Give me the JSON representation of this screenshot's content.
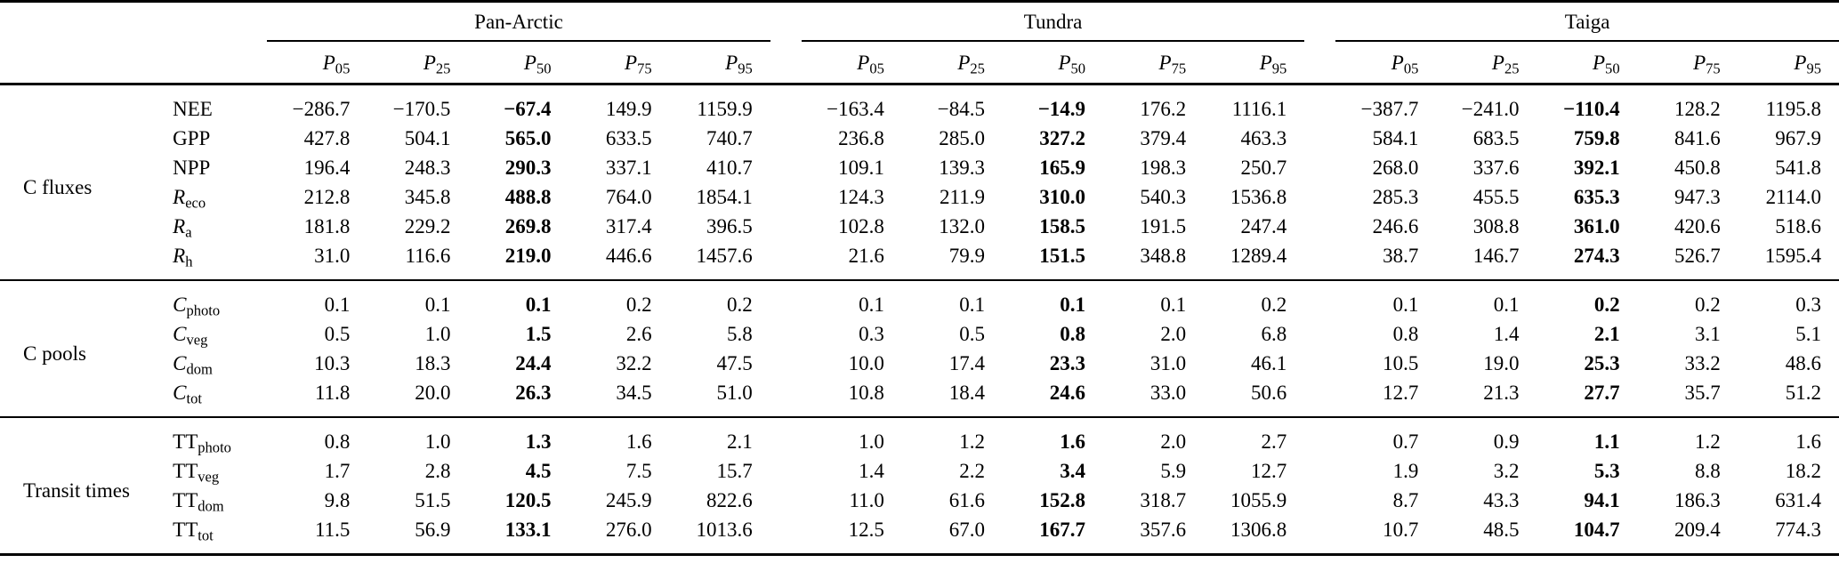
{
  "table": {
    "groups": [
      {
        "label": "Pan-Arctic"
      },
      {
        "label": "Tundra"
      },
      {
        "label": "Taiga"
      }
    ],
    "percentile_headers": [
      {
        "symbol": "P",
        "sub": "05"
      },
      {
        "symbol": "P",
        "sub": "25"
      },
      {
        "symbol": "P",
        "sub": "50"
      },
      {
        "symbol": "P",
        "sub": "75"
      },
      {
        "symbol": "P",
        "sub": "95"
      }
    ],
    "median_column_index": 2,
    "sections": [
      {
        "label": "C fluxes",
        "rows": [
          {
            "variable": {
              "main": "NEE",
              "sub": "",
              "italic": false
            },
            "values": [
              [
                "−286.7",
                "−170.5",
                "−67.4",
                "149.9",
                "1159.9"
              ],
              [
                "−163.4",
                "−84.5",
                "−14.9",
                "176.2",
                "1116.1"
              ],
              [
                "−387.7",
                "−241.0",
                "−110.4",
                "128.2",
                "1195.8"
              ]
            ]
          },
          {
            "variable": {
              "main": "GPP",
              "sub": "",
              "italic": false
            },
            "values": [
              [
                "427.8",
                "504.1",
                "565.0",
                "633.5",
                "740.7"
              ],
              [
                "236.8",
                "285.0",
                "327.2",
                "379.4",
                "463.3"
              ],
              [
                "584.1",
                "683.5",
                "759.8",
                "841.6",
                "967.9"
              ]
            ]
          },
          {
            "variable": {
              "main": "NPP",
              "sub": "",
              "italic": false
            },
            "values": [
              [
                "196.4",
                "248.3",
                "290.3",
                "337.1",
                "410.7"
              ],
              [
                "109.1",
                "139.3",
                "165.9",
                "198.3",
                "250.7"
              ],
              [
                "268.0",
                "337.6",
                "392.1",
                "450.8",
                "541.8"
              ]
            ]
          },
          {
            "variable": {
              "main": "R",
              "sub": "eco",
              "italic": true
            },
            "values": [
              [
                "212.8",
                "345.8",
                "488.8",
                "764.0",
                "1854.1"
              ],
              [
                "124.3",
                "211.9",
                "310.0",
                "540.3",
                "1536.8"
              ],
              [
                "285.3",
                "455.5",
                "635.3",
                "947.3",
                "2114.0"
              ]
            ]
          },
          {
            "variable": {
              "main": "R",
              "sub": "a",
              "italic": true
            },
            "values": [
              [
                "181.8",
                "229.2",
                "269.8",
                "317.4",
                "396.5"
              ],
              [
                "102.8",
                "132.0",
                "158.5",
                "191.5",
                "247.4"
              ],
              [
                "246.6",
                "308.8",
                "361.0",
                "420.6",
                "518.6"
              ]
            ]
          },
          {
            "variable": {
              "main": "R",
              "sub": "h",
              "italic": true
            },
            "values": [
              [
                "31.0",
                "116.6",
                "219.0",
                "446.6",
                "1457.6"
              ],
              [
                "21.6",
                "79.9",
                "151.5",
                "348.8",
                "1289.4"
              ],
              [
                "38.7",
                "146.7",
                "274.3",
                "526.7",
                "1595.4"
              ]
            ]
          }
        ]
      },
      {
        "label": "C pools",
        "rows": [
          {
            "variable": {
              "main": "C",
              "sub": "photo",
              "italic": true
            },
            "values": [
              [
                "0.1",
                "0.1",
                "0.1",
                "0.2",
                "0.2"
              ],
              [
                "0.1",
                "0.1",
                "0.1",
                "0.1",
                "0.2"
              ],
              [
                "0.1",
                "0.1",
                "0.2",
                "0.2",
                "0.3"
              ]
            ]
          },
          {
            "variable": {
              "main": "C",
              "sub": "veg",
              "italic": true
            },
            "values": [
              [
                "0.5",
                "1.0",
                "1.5",
                "2.6",
                "5.8"
              ],
              [
                "0.3",
                "0.5",
                "0.8",
                "2.0",
                "6.8"
              ],
              [
                "0.8",
                "1.4",
                "2.1",
                "3.1",
                "5.1"
              ]
            ]
          },
          {
            "variable": {
              "main": "C",
              "sub": "dom",
              "italic": true
            },
            "values": [
              [
                "10.3",
                "18.3",
                "24.4",
                "32.2",
                "47.5"
              ],
              [
                "10.0",
                "17.4",
                "23.3",
                "31.0",
                "46.1"
              ],
              [
                "10.5",
                "19.0",
                "25.3",
                "33.2",
                "48.6"
              ]
            ]
          },
          {
            "variable": {
              "main": "C",
              "sub": "tot",
              "italic": true
            },
            "values": [
              [
                "11.8",
                "20.0",
                "26.3",
                "34.5",
                "51.0"
              ],
              [
                "10.8",
                "18.4",
                "24.6",
                "33.0",
                "50.6"
              ],
              [
                "12.7",
                "21.3",
                "27.7",
                "35.7",
                "51.2"
              ]
            ]
          }
        ]
      },
      {
        "label": "Transit times",
        "rows": [
          {
            "variable": {
              "main": "TT",
              "sub": "photo",
              "italic": false
            },
            "values": [
              [
                "0.8",
                "1.0",
                "1.3",
                "1.6",
                "2.1"
              ],
              [
                "1.0",
                "1.2",
                "1.6",
                "2.0",
                "2.7"
              ],
              [
                "0.7",
                "0.9",
                "1.1",
                "1.2",
                "1.6"
              ]
            ]
          },
          {
            "variable": {
              "main": "TT",
              "sub": "veg",
              "italic": false
            },
            "values": [
              [
                "1.7",
                "2.8",
                "4.5",
                "7.5",
                "15.7"
              ],
              [
                "1.4",
                "2.2",
                "3.4",
                "5.9",
                "12.7"
              ],
              [
                "1.9",
                "3.2",
                "5.3",
                "8.8",
                "18.2"
              ]
            ]
          },
          {
            "variable": {
              "main": "TT",
              "sub": "dom",
              "italic": false
            },
            "values": [
              [
                "9.8",
                "51.5",
                "120.5",
                "245.9",
                "822.6"
              ],
              [
                "11.0",
                "61.6",
                "152.8",
                "318.7",
                "1055.9"
              ],
              [
                "8.7",
                "43.3",
                "94.1",
                "186.3",
                "631.4"
              ]
            ]
          },
          {
            "variable": {
              "main": "TT",
              "sub": "tot",
              "italic": false
            },
            "values": [
              [
                "11.5",
                "56.9",
                "133.1",
                "276.0",
                "1013.6"
              ],
              [
                "12.5",
                "67.0",
                "167.7",
                "357.6",
                "1306.8"
              ],
              [
                "10.7",
                "48.5",
                "104.7",
                "209.4",
                "774.3"
              ]
            ]
          }
        ]
      }
    ]
  },
  "colors": {
    "text": "#000000",
    "background": "#ffffff",
    "rule": "#000000"
  }
}
